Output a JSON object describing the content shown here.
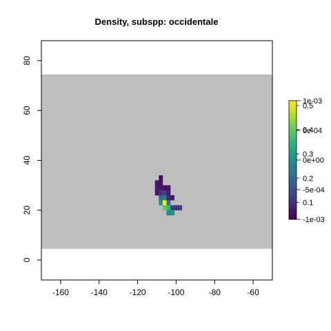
{
  "chart_data": {
    "type": "heatmap",
    "title": "Density, subspp: occidentale",
    "xlabel": "",
    "ylabel": "",
    "xlim": [
      -170,
      -50
    ],
    "ylim": [
      -8,
      88
    ],
    "x_ticks": [
      -160,
      -140,
      -120,
      -100,
      -80,
      -60
    ],
    "y_ticks": [
      0,
      20,
      40,
      60,
      80
    ],
    "background_band": {
      "y_from": 4.5,
      "y_to": 74.5,
      "color": "#bebebe"
    },
    "cell_size": 2,
    "palette": "viridis",
    "colorbar": {
      "left_labels": [
        "0.5",
        "0.4",
        "0.3",
        "0.2",
        "0.1"
      ],
      "left_values": [
        0.5,
        0.4,
        0.3,
        0.2,
        0.1
      ],
      "left_range": [
        0.03,
        0.52
      ],
      "right_labels": [
        "1e-03",
        "5e-04",
        "0e+00",
        "-5e-04",
        "-1e-03"
      ],
      "right_values": [
        0.001,
        0.0005,
        0,
        -0.0005,
        -0.001
      ],
      "right_range": [
        -0.001,
        0.001
      ]
    },
    "cells": [
      {
        "x": -108,
        "y": 33,
        "v": 0.05
      },
      {
        "x": -110,
        "y": 31,
        "v": 0.06
      },
      {
        "x": -108,
        "y": 31,
        "v": 0.05
      },
      {
        "x": -110,
        "y": 29,
        "v": 0.07
      },
      {
        "x": -108,
        "y": 29,
        "v": 0.06
      },
      {
        "x": -106,
        "y": 29,
        "v": 0.05
      },
      {
        "x": -104,
        "y": 29,
        "v": 0.06
      },
      {
        "x": -110,
        "y": 27,
        "v": 0.06
      },
      {
        "x": -108,
        "y": 27,
        "v": 0.1
      },
      {
        "x": -106,
        "y": 27,
        "v": 0.12
      },
      {
        "x": -104,
        "y": 27,
        "v": 0.07
      },
      {
        "x": -108,
        "y": 25,
        "v": 0.2
      },
      {
        "x": -106,
        "y": 25,
        "v": 0.24
      },
      {
        "x": -104,
        "y": 25,
        "v": 0.08
      },
      {
        "x": -102,
        "y": 25,
        "v": 0.06
      },
      {
        "x": -108,
        "y": 23,
        "v": 0.28
      },
      {
        "x": -106,
        "y": 23,
        "v": 0.52
      },
      {
        "x": -104,
        "y": 23,
        "v": 0.22
      },
      {
        "x": -106,
        "y": 21,
        "v": 0.4
      },
      {
        "x": -104,
        "y": 21,
        "v": 0.36
      },
      {
        "x": -102,
        "y": 21,
        "v": 0.12
      },
      {
        "x": -100,
        "y": 21,
        "v": 0.1
      },
      {
        "x": -98,
        "y": 21,
        "v": 0.12
      },
      {
        "x": -104,
        "y": 19,
        "v": 0.26
      },
      {
        "x": -102,
        "y": 19,
        "v": 0.28
      }
    ]
  }
}
